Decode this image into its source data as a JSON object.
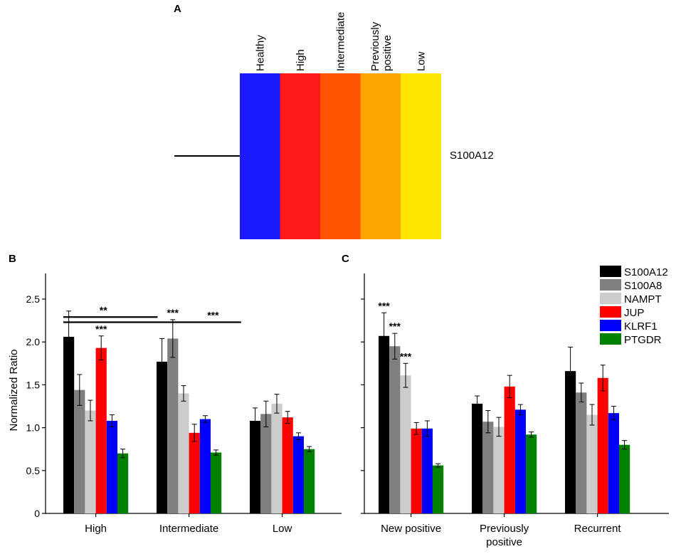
{
  "heatmap": {
    "panel_label": "A",
    "columns": [
      {
        "label": "Healthy",
        "color": "#1a1aff"
      },
      {
        "label": "High",
        "color": "#ff1a1a"
      },
      {
        "label": "Intermediate",
        "color": "#ff5500"
      },
      {
        "label": "Previously\npositive",
        "color": "#ffa500"
      },
      {
        "label": "Low",
        "color": "#ffe600"
      }
    ],
    "row_label": "S100A12"
  },
  "legend": [
    {
      "name": "S100A12",
      "color": "#000000"
    },
    {
      "name": "S100A8",
      "color": "#7f7f7f"
    },
    {
      "name": "NAMPT",
      "color": "#cccccc"
    },
    {
      "name": "JUP",
      "color": "#ff0000"
    },
    {
      "name": "KLRF1",
      "color": "#0000ff"
    },
    {
      "name": "PTGDR",
      "color": "#008000"
    }
  ],
  "chart_data": [
    {
      "panel_label": "B",
      "type": "bar",
      "ylabel": "Normalized Ratio",
      "ylim": [
        0,
        2.7
      ],
      "yticks": [
        "0",
        "0.5",
        "1.0",
        "1.5",
        "2.0",
        "2.5"
      ],
      "categories": [
        "High",
        "Intermediate",
        "Low"
      ],
      "series": [
        {
          "name": "S100A12",
          "values": [
            2.06,
            1.77,
            1.08
          ],
          "errors": [
            0.3,
            0.27,
            0.15
          ]
        },
        {
          "name": "S100A8",
          "values": [
            1.44,
            2.04,
            1.16
          ],
          "errors": [
            0.18,
            0.22,
            0.15
          ]
        },
        {
          "name": "NAMPT",
          "values": [
            1.2,
            1.4,
            1.28
          ],
          "errors": [
            0.12,
            0.09,
            0.11
          ]
        },
        {
          "name": "JUP",
          "values": [
            1.93,
            0.94,
            1.12
          ],
          "errors": [
            0.14,
            0.1,
            0.07
          ]
        },
        {
          "name": "KLRF1",
          "values": [
            1.08,
            1.1,
            0.9
          ],
          "errors": [
            0.07,
            0.04,
            0.04
          ]
        },
        {
          "name": "PTGDR",
          "values": [
            0.7,
            0.71,
            0.75
          ],
          "errors": [
            0.05,
            0.03,
            0.03
          ]
        }
      ],
      "annotations": [
        {
          "text": "***",
          "category": 0,
          "series": 3
        },
        {
          "text": "***",
          "category": 1,
          "series": 1
        }
      ],
      "brackets": [
        {
          "text": "**",
          "from_category": 0,
          "to_category": 1,
          "y": 2.29
        },
        {
          "text": "***",
          "from_category": 0,
          "to_category": 2,
          "y": 2.23
        }
      ]
    },
    {
      "panel_label": "C",
      "type": "bar",
      "ylabel": "",
      "ylim": [
        0,
        2.7
      ],
      "categories": [
        "New positive",
        "Previously\npositive",
        "Recurrent"
      ],
      "series": [
        {
          "name": "S100A12",
          "values": [
            2.07,
            1.28,
            1.66
          ],
          "errors": [
            0.27,
            0.09,
            0.28
          ]
        },
        {
          "name": "S100A8",
          "values": [
            1.95,
            1.07,
            1.41
          ],
          "errors": [
            0.15,
            0.13,
            0.11
          ]
        },
        {
          "name": "NAMPT",
          "values": [
            1.61,
            1.01,
            1.15
          ],
          "errors": [
            0.14,
            0.11,
            0.12
          ]
        },
        {
          "name": "JUP",
          "values": [
            0.99,
            1.48,
            1.58
          ],
          "errors": [
            0.07,
            0.13,
            0.15
          ]
        },
        {
          "name": "KLRF1",
          "values": [
            0.99,
            1.21,
            1.17
          ],
          "errors": [
            0.09,
            0.06,
            0.08
          ]
        },
        {
          "name": "PTGDR",
          "values": [
            0.56,
            0.92,
            0.8
          ],
          "errors": [
            0.02,
            0.03,
            0.05
          ]
        }
      ],
      "annotations": [
        {
          "text": "***",
          "category": 0,
          "series": 0
        },
        {
          "text": "***",
          "category": 0,
          "series": 1
        },
        {
          "text": "***",
          "category": 0,
          "series": 2
        }
      ]
    }
  ]
}
